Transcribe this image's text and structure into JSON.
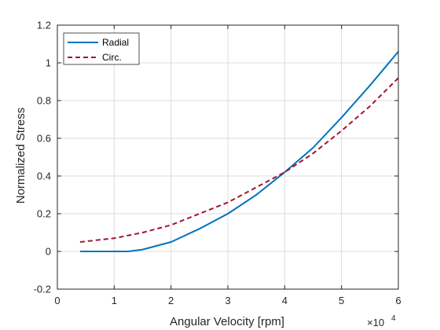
{
  "chart_data": {
    "type": "line",
    "xlabel": "Angular Velocity [rpm]",
    "ylabel": "Normalized Stress",
    "x_exponent_label": "×10",
    "x_exponent_power": "4",
    "xlim": [
      0,
      60000
    ],
    "ylim": [
      -0.2,
      1.2
    ],
    "x_ticks": [
      0,
      10000,
      20000,
      30000,
      40000,
      50000,
      60000
    ],
    "x_tick_labels": [
      "0",
      "1",
      "2",
      "3",
      "4",
      "5",
      "6"
    ],
    "y_ticks": [
      -0.2,
      0,
      0.2,
      0.4,
      0.6,
      0.8,
      1.0,
      1.2
    ],
    "y_tick_labels": [
      "-0.2",
      "0",
      "0.2",
      "0.4",
      "0.6",
      "0.8",
      "1",
      "1.2"
    ],
    "grid": true,
    "legend_position": "top-left",
    "series": [
      {
        "name": "Radial",
        "color": "#0072bd",
        "style": "solid",
        "x": [
          4000,
          8000,
          12500,
          15000,
          20000,
          25000,
          30000,
          35000,
          40000,
          45000,
          50000,
          55000,
          60000
        ],
        "y": [
          0.0,
          0.0,
          0.0,
          0.01,
          0.05,
          0.12,
          0.2,
          0.3,
          0.42,
          0.55,
          0.71,
          0.88,
          1.06
        ]
      },
      {
        "name": "Circ.",
        "color": "#a2142f",
        "style": "dashed",
        "x": [
          4000,
          10000,
          15000,
          20000,
          25000,
          30000,
          35000,
          40000,
          45000,
          50000,
          55000,
          60000
        ],
        "y": [
          0.05,
          0.07,
          0.1,
          0.14,
          0.2,
          0.26,
          0.34,
          0.42,
          0.52,
          0.64,
          0.77,
          0.92
        ]
      }
    ]
  }
}
